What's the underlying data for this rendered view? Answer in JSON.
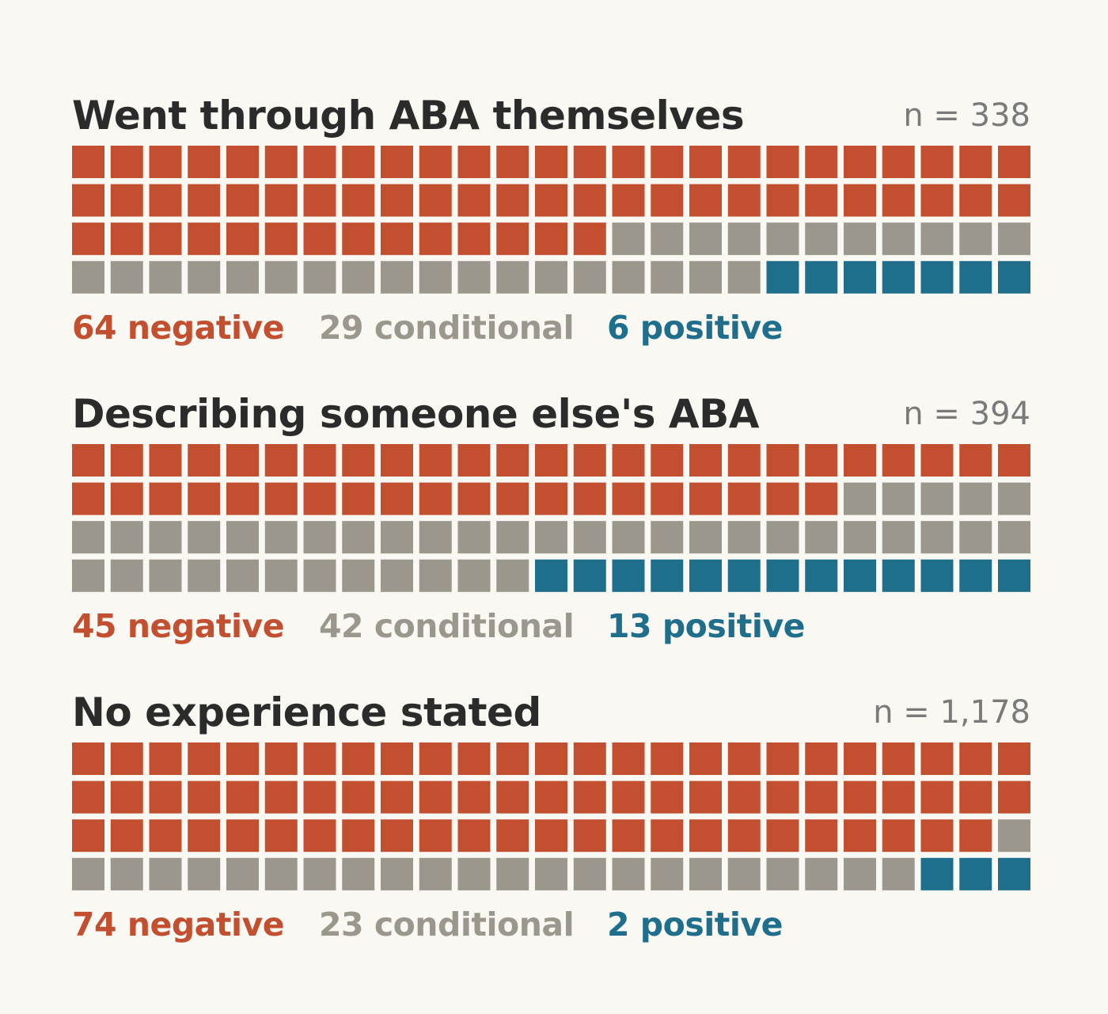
{
  "colors": {
    "negative": "#c24f2f",
    "conditional": "#9b978d",
    "positive": "#1f6e8c",
    "background": "#faf8f3"
  },
  "chart_data": [
    {
      "type": "waffle",
      "title": "Went through ABA themselves",
      "n_label": "n = 338",
      "grid": {
        "rows": 4,
        "cols": 25
      },
      "categories": [
        "negative",
        "conditional",
        "positive"
      ],
      "values": [
        64,
        29,
        6
      ],
      "legend": [
        "64 negative",
        "29 conditional",
        "6 positive"
      ]
    },
    {
      "type": "waffle",
      "title": "Describing someone else's ABA",
      "n_label": "n = 394",
      "grid": {
        "rows": 4,
        "cols": 25
      },
      "categories": [
        "negative",
        "conditional",
        "positive"
      ],
      "values": [
        45,
        42,
        13
      ],
      "legend": [
        "45 negative",
        "42 conditional",
        "13 positive"
      ]
    },
    {
      "type": "waffle",
      "title": "No experience stated",
      "n_label": "n = 1,178",
      "grid": {
        "rows": 4,
        "cols": 25
      },
      "categories": [
        "negative",
        "conditional",
        "positive"
      ],
      "values": [
        74,
        23,
        2
      ],
      "legend": [
        "74 negative",
        "23 conditional",
        "2 positive"
      ]
    }
  ]
}
